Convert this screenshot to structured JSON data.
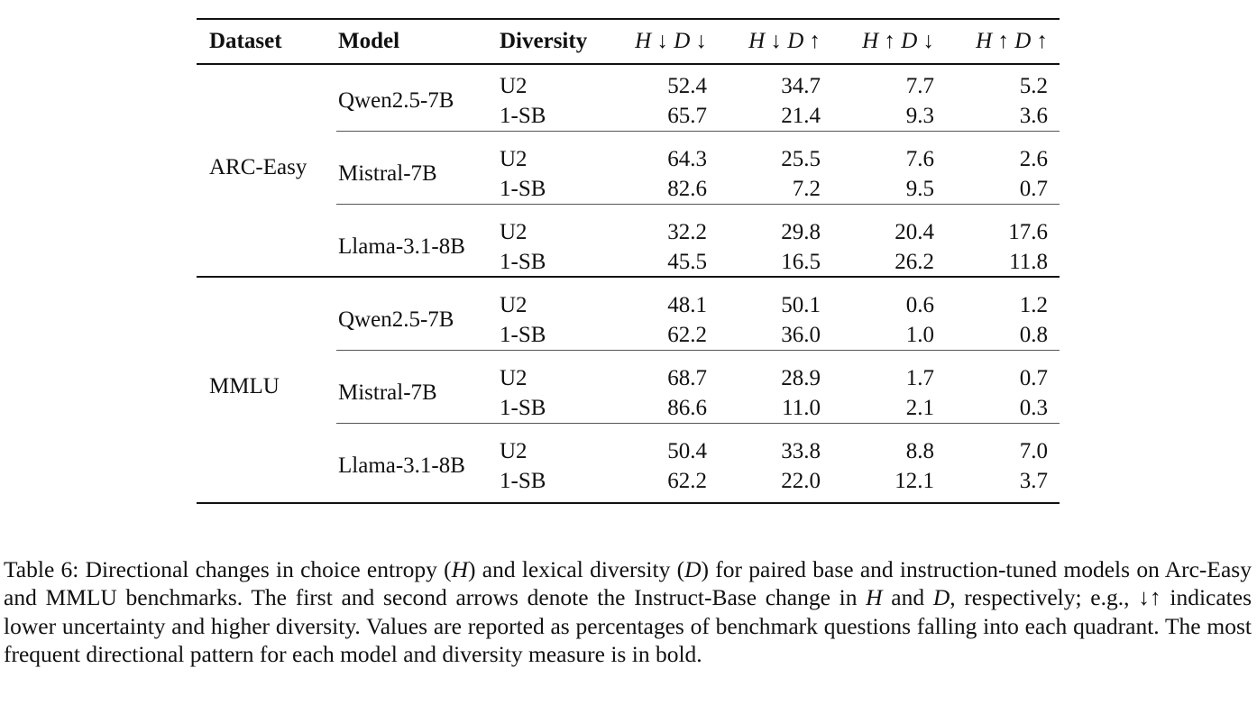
{
  "table": {
    "headers": {
      "dataset": "Dataset",
      "model": "Model",
      "diversity": "Diversity",
      "q1": "H ↓ D ↓",
      "q2": "H ↓ D ↑",
      "q3": "H ↑ D ↓",
      "q4": "H ↑ D ↑"
    },
    "groups": [
      {
        "dataset": "ARC-Easy",
        "models": [
          {
            "name": "Qwen2.5-7B",
            "rows": [
              {
                "diversity": "U2",
                "v": [
                  "52.4",
                  "34.7",
                  "7.7",
                  "5.2"
                ]
              },
              {
                "diversity": "1-SB",
                "v": [
                  "65.7",
                  "21.4",
                  "9.3",
                  "3.6"
                ]
              }
            ]
          },
          {
            "name": "Mistral-7B",
            "rows": [
              {
                "diversity": "U2",
                "v": [
                  "64.3",
                  "25.5",
                  "7.6",
                  "2.6"
                ]
              },
              {
                "diversity": "1-SB",
                "v": [
                  "82.6",
                  "7.2",
                  "9.5",
                  "0.7"
                ]
              }
            ]
          },
          {
            "name": "Llama-3.1-8B",
            "rows": [
              {
                "diversity": "U2",
                "v": [
                  "32.2",
                  "29.8",
                  "20.4",
                  "17.6"
                ]
              },
              {
                "diversity": "1-SB",
                "v": [
                  "45.5",
                  "16.5",
                  "26.2",
                  "11.8"
                ]
              }
            ]
          }
        ]
      },
      {
        "dataset": "MMLU",
        "models": [
          {
            "name": "Qwen2.5-7B",
            "rows": [
              {
                "diversity": "U2",
                "v": [
                  "48.1",
                  "50.1",
                  "0.6",
                  "1.2"
                ]
              },
              {
                "diversity": "1-SB",
                "v": [
                  "62.2",
                  "36.0",
                  "1.0",
                  "0.8"
                ]
              }
            ]
          },
          {
            "name": "Mistral-7B",
            "rows": [
              {
                "diversity": "U2",
                "v": [
                  "68.7",
                  "28.9",
                  "1.7",
                  "0.7"
                ]
              },
              {
                "diversity": "1-SB",
                "v": [
                  "86.6",
                  "11.0",
                  "2.1",
                  "0.3"
                ]
              }
            ]
          },
          {
            "name": "Llama-3.1-8B",
            "rows": [
              {
                "diversity": "U2",
                "v": [
                  "50.4",
                  "33.8",
                  "8.8",
                  "7.0"
                ]
              },
              {
                "diversity": "1-SB",
                "v": [
                  "62.2",
                  "22.0",
                  "12.1",
                  "3.7"
                ]
              }
            ]
          }
        ]
      }
    ]
  },
  "caption": {
    "part1": "Table 6: Directional changes in choice entropy (",
    "h": "H",
    "part2": ") and lexical diversity (",
    "d": "D",
    "part3": ") for paired base and instruction-tuned models on Arc-Easy and MMLU benchmarks. The first and second arrows denote the Instruct-Base change in ",
    "h2": "H",
    "part4": " and ",
    "d2": "D",
    "part5": ", respectively; e.g., ↓↑ indicates lower uncertainty and higher diversity. Values are reported as percentages of benchmark questions falling into each quadrant. The most frequent directional pattern for each model and diversity measure is in bold."
  }
}
